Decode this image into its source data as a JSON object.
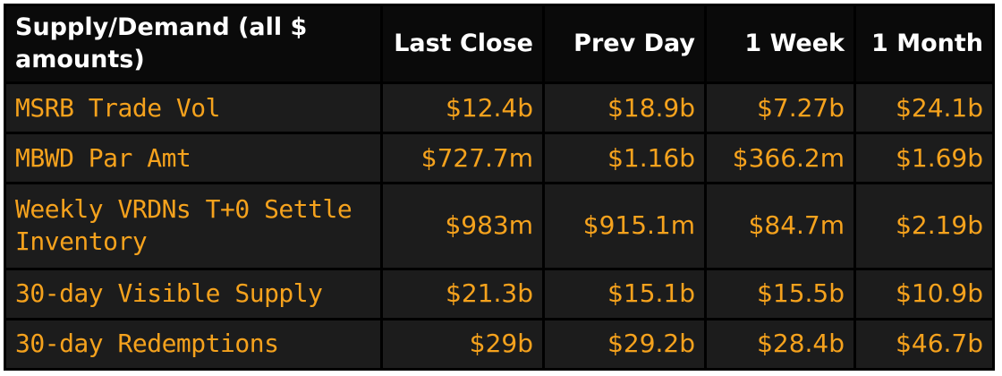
{
  "table": {
    "headers": [
      "Supply/Demand (all $ amounts)",
      "Last Close",
      "Prev Day",
      "1 Week",
      "1 Month"
    ],
    "rows": [
      {
        "label": "MSRB Trade Vol",
        "values": [
          "$12.4b",
          "$18.9b",
          "$7.27b",
          "$24.1b"
        ]
      },
      {
        "label": "MBWD Par Amt",
        "values": [
          "$727.7m",
          "$1.16b",
          "$366.2m",
          "$1.69b"
        ]
      },
      {
        "label": "Weekly VRDNs T+0 Settle Inventory",
        "values": [
          "$983m",
          "$915.1m",
          "$84.7m",
          "$2.19b"
        ]
      },
      {
        "label": "30-day Visible Supply",
        "values": [
          "$21.3b",
          "$15.1b",
          "$15.5b",
          "$10.9b"
        ]
      },
      {
        "label": "30-day Redemptions",
        "values": [
          "$29b",
          "$29.2b",
          "$28.4b",
          "$46.7b"
        ]
      }
    ]
  },
  "colors": {
    "background": "#000000",
    "header_text": "#ffffff",
    "value_text": "#f5a21d",
    "row_background": "#1c1c1c"
  }
}
